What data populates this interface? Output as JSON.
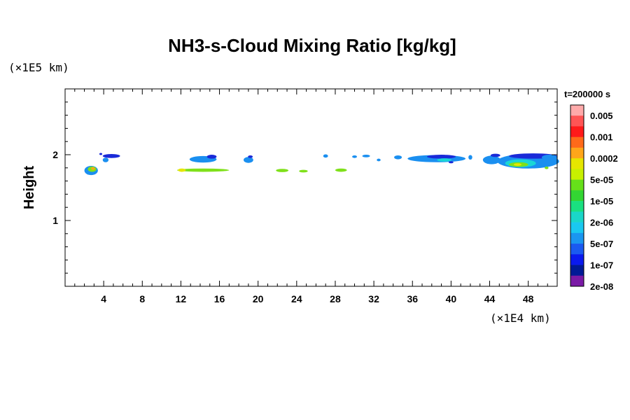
{
  "chart_data": {
    "type": "heatmap",
    "title": "NH3-s-Cloud Mixing Ratio [kg/kg]",
    "ylabel": "Height",
    "y_unit": "(×1E5 km)",
    "x_unit": "(×1E4 km)",
    "xlim": [
      0,
      51
    ],
    "ylim": [
      0,
      3
    ],
    "x_ticks": [
      "4",
      "8",
      "12",
      "16",
      "20",
      "24",
      "28",
      "32",
      "36",
      "40",
      "44",
      "48"
    ],
    "y_ticks": [
      "1",
      "2"
    ],
    "time_label": "t=200000 s",
    "colorbar": {
      "labels": [
        "0.005",
        "0.001",
        "0.0002",
        "5e-05",
        "1e-05",
        "2e-06",
        "5e-07",
        "1e-07",
        "2e-08"
      ],
      "colors": [
        "#ffaaaa",
        "#ff5555",
        "#ff1a1a",
        "#ff6a1a",
        "#ffa61a",
        "#e6e600",
        "#c8f000",
        "#66e01a",
        "#33d633",
        "#1ae080",
        "#1ad6c8",
        "#1ac8f0",
        "#1a96f0",
        "#1a5af0",
        "#0a1aee",
        "#001a96",
        "#7a1aa6"
      ]
    },
    "cloud_patches": [
      {
        "x": 2.7,
        "y": 1.76,
        "w": 1.4,
        "h": 0.14,
        "level": 1
      },
      {
        "x": 2.8,
        "y": 1.78,
        "w": 0.9,
        "h": 0.08,
        "level": 3
      },
      {
        "x": 2.9,
        "y": 1.79,
        "w": 0.4,
        "h": 0.04,
        "level": 5
      },
      {
        "x": 4.8,
        "y": 1.98,
        "w": 1.8,
        "h": 0.06,
        "level": 0
      },
      {
        "x": 4.2,
        "y": 1.92,
        "w": 0.6,
        "h": 0.07,
        "level": 1
      },
      {
        "x": 3.7,
        "y": 2.01,
        "w": 0.3,
        "h": 0.03,
        "level": 0
      },
      {
        "x": 14.3,
        "y": 1.93,
        "w": 2.8,
        "h": 0.1,
        "level": 1
      },
      {
        "x": 15.2,
        "y": 1.97,
        "w": 1.0,
        "h": 0.06,
        "level": 0
      },
      {
        "x": 14.3,
        "y": 1.765,
        "w": 5.4,
        "h": 0.05,
        "level": 3
      },
      {
        "x": 12.1,
        "y": 1.765,
        "w": 0.8,
        "h": 0.05,
        "level": 4
      },
      {
        "x": 19.0,
        "y": 1.92,
        "w": 1.0,
        "h": 0.09,
        "level": 1
      },
      {
        "x": 19.2,
        "y": 1.97,
        "w": 0.5,
        "h": 0.04,
        "level": 0
      },
      {
        "x": 22.5,
        "y": 1.76,
        "w": 1.3,
        "h": 0.05,
        "level": 3
      },
      {
        "x": 24.7,
        "y": 1.75,
        "w": 0.9,
        "h": 0.04,
        "level": 3
      },
      {
        "x": 27.0,
        "y": 1.98,
        "w": 0.5,
        "h": 0.05,
        "level": 1
      },
      {
        "x": 28.6,
        "y": 1.765,
        "w": 1.2,
        "h": 0.05,
        "level": 3
      },
      {
        "x": 30.0,
        "y": 1.97,
        "w": 0.5,
        "h": 0.04,
        "level": 1
      },
      {
        "x": 31.2,
        "y": 1.98,
        "w": 0.8,
        "h": 0.04,
        "level": 1
      },
      {
        "x": 32.5,
        "y": 1.92,
        "w": 0.4,
        "h": 0.04,
        "level": 1
      },
      {
        "x": 34.5,
        "y": 1.96,
        "w": 0.8,
        "h": 0.06,
        "level": 1
      },
      {
        "x": 38.5,
        "y": 1.94,
        "w": 6.0,
        "h": 0.11,
        "level": 1
      },
      {
        "x": 39.0,
        "y": 1.97,
        "w": 3.0,
        "h": 0.06,
        "level": 0
      },
      {
        "x": 39.3,
        "y": 1.92,
        "w": 1.5,
        "h": 0.05,
        "level": 2
      },
      {
        "x": 40.0,
        "y": 1.885,
        "w": 0.5,
        "h": 0.03,
        "level": 0
      },
      {
        "x": 42.0,
        "y": 1.96,
        "w": 0.4,
        "h": 0.07,
        "level": 1
      },
      {
        "x": 44.2,
        "y": 1.92,
        "w": 1.8,
        "h": 0.13,
        "level": 1
      },
      {
        "x": 44.6,
        "y": 1.99,
        "w": 1.0,
        "h": 0.05,
        "level": 0
      },
      {
        "x": 48.0,
        "y": 1.9,
        "w": 6.4,
        "h": 0.22,
        "level": 1
      },
      {
        "x": 48.5,
        "y": 1.98,
        "w": 5.0,
        "h": 0.08,
        "level": 0
      },
      {
        "x": 47.2,
        "y": 1.87,
        "w": 3.2,
        "h": 0.12,
        "level": 2
      },
      {
        "x": 47.0,
        "y": 1.85,
        "w": 2.0,
        "h": 0.07,
        "level": 3
      },
      {
        "x": 46.9,
        "y": 1.85,
        "w": 0.8,
        "h": 0.04,
        "level": 4
      },
      {
        "x": 50.2,
        "y": 1.96,
        "w": 1.6,
        "h": 0.08,
        "level": 1
      },
      {
        "x": 49.9,
        "y": 1.8,
        "w": 0.4,
        "h": 0.04,
        "level": 3
      }
    ],
    "cloud_colors": [
      "#1a2ad8",
      "#1a8ff0",
      "#1ad6d6",
      "#7fe01a",
      "#e6e600",
      "#ffa61a"
    ]
  }
}
